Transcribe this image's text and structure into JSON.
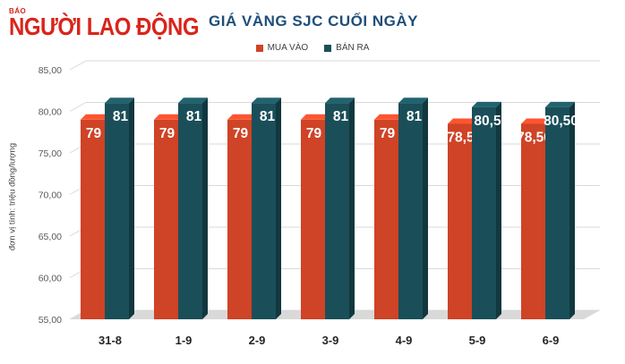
{
  "logo": {
    "small": "BÁO",
    "main": "NGƯỜI LAO ĐỘNG"
  },
  "chart_data": {
    "type": "bar",
    "title": "GIÁ VÀNG SJC CUỐI NGÀY",
    "ylabel": "đơn vị tính: triệu đồng/lượng",
    "xlabel": "",
    "categories": [
      "31-8",
      "1-9",
      "2-9",
      "3-9",
      "4-9",
      "5-9",
      "6-9"
    ],
    "series": [
      {
        "name": "MUA VÀO",
        "color": "#cf4326",
        "values": [
          79,
          79,
          79,
          79,
          79,
          78.5,
          78.5
        ],
        "labels": [
          "79",
          "79",
          "79",
          "79",
          "79",
          "78,5",
          "78,50"
        ]
      },
      {
        "name": "BÁN RA",
        "color": "#1a4f59",
        "values": [
          81,
          81,
          81,
          81,
          81,
          80.5,
          80.5
        ],
        "labels": [
          "81",
          "81",
          "81",
          "81",
          "81",
          "80,5",
          "80,50"
        ]
      }
    ],
    "ylim": [
      55,
      85
    ],
    "yticks": [
      "55,00",
      "60,00",
      "65,00",
      "70,00",
      "75,00",
      "80,00",
      "85,00"
    ],
    "grid": true,
    "legend": "top-center"
  }
}
